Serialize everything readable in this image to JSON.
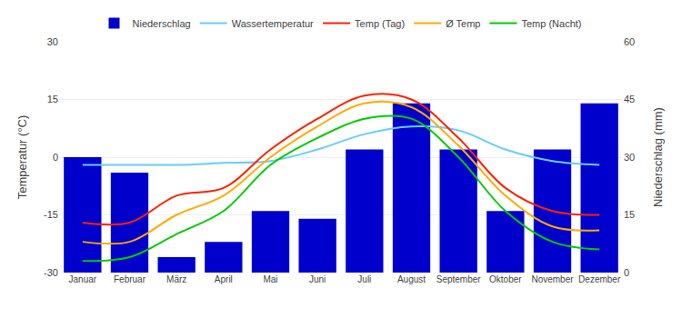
{
  "chart_data": {
    "type": "bar",
    "categories": [
      "Januar",
      "Februar",
      "März",
      "April",
      "Mai",
      "Juni",
      "Juli",
      "August",
      "September",
      "Oktober",
      "November",
      "Dezember"
    ],
    "series": [
      {
        "name": "Niederschlag",
        "type": "bar",
        "axis": "y2",
        "color": "#0000CC",
        "values": [
          30,
          26,
          4,
          8,
          16,
          14,
          32,
          44,
          32,
          16,
          32,
          44
        ]
      },
      {
        "name": "Wassertemperatur",
        "type": "line",
        "line_style": "smooth",
        "color": "#66CCFF",
        "values": [
          -2,
          -2,
          -2,
          -1.5,
          -1,
          2,
          6,
          8,
          7,
          2,
          -1,
          -2
        ]
      },
      {
        "name": "Temp (Tag)",
        "type": "line",
        "line_style": "smooth",
        "color": "#FF2200",
        "values": [
          -17,
          -17,
          -10,
          -8,
          2,
          10,
          16,
          15,
          5,
          -8,
          -14,
          -15
        ]
      },
      {
        "name": "Ø Temp",
        "type": "line",
        "line_style": "smooth",
        "color": "#FFAA00",
        "values": [
          -22,
          -22,
          -15,
          -10,
          0,
          8,
          14,
          13,
          3,
          -10,
          -18,
          -19
        ]
      },
      {
        "name": "Temp (Nacht)",
        "type": "line",
        "line_style": "smooth",
        "color": "#00CC00",
        "values": [
          -27,
          -26,
          -20,
          -14,
          -2,
          5,
          10,
          10,
          0,
          -14,
          -22,
          -24
        ]
      }
    ],
    "y_label": "Temperatur (°C)",
    "y2_label": "Niederschlag (mm)",
    "ylim": [
      -30,
      30
    ],
    "yticks": [
      -30,
      -15,
      0,
      15,
      30
    ],
    "y2lim": [
      0,
      60
    ],
    "y2ticks": [
      0,
      15,
      30,
      45,
      60
    ],
    "grid": true,
    "legend": "top"
  }
}
